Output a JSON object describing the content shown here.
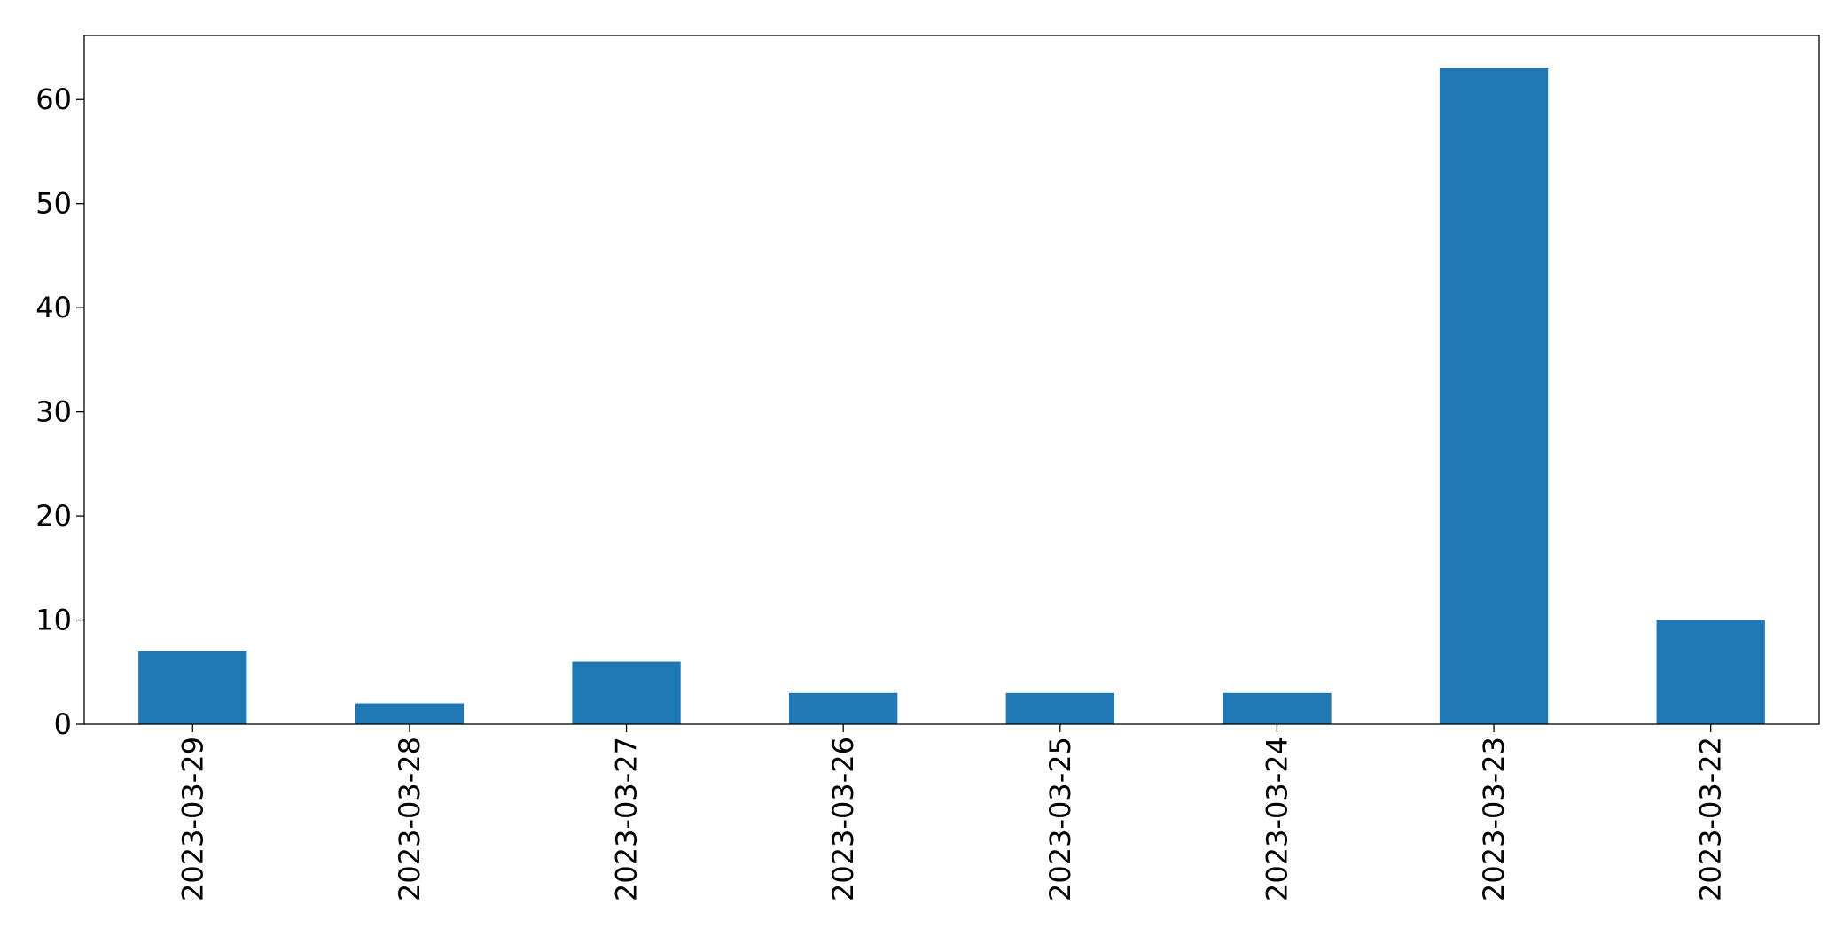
{
  "chart_data": {
    "type": "bar",
    "categories": [
      "2023-03-29",
      "2023-03-28",
      "2023-03-27",
      "2023-03-26",
      "2023-03-25",
      "2023-03-24",
      "2023-03-23",
      "2023-03-22"
    ],
    "values": [
      7,
      2,
      6,
      3,
      3,
      3,
      63,
      10
    ],
    "color": "#1f77b4",
    "ylim": [
      0,
      66.15
    ],
    "yticks": [
      0,
      10,
      20,
      30,
      40,
      50,
      60
    ],
    "grid": false
  }
}
